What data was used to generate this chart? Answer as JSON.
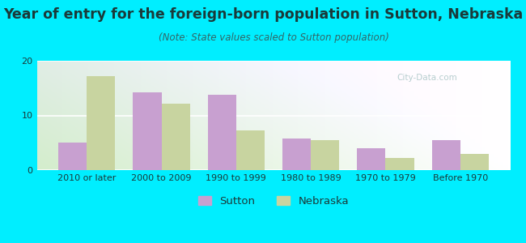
{
  "categories": [
    "2010 or later",
    "2000 to 2009",
    "1990 to 1999",
    "1980 to 1989",
    "1970 to 1979",
    "Before 1970"
  ],
  "sutton_values": [
    5.0,
    14.2,
    13.8,
    5.8,
    4.0,
    5.5
  ],
  "nebraska_values": [
    17.2,
    12.2,
    7.2,
    5.5,
    2.2,
    3.0
  ],
  "sutton_color": "#c8a0d0",
  "nebraska_color": "#c8d4a0",
  "title": "Year of entry for the foreign-born population in Sutton, Nebraska",
  "subtitle": "(Note: State values scaled to Sutton population)",
  "legend_sutton": "Sutton",
  "legend_nebraska": "Nebraska",
  "ylim": [
    0,
    20
  ],
  "yticks": [
    0,
    10,
    20
  ],
  "background_outer": "#00eeff",
  "background_inner_bottom_left": "#d4edcc",
  "background_inner_top_right": "#f8fffc",
  "bar_width": 0.38,
  "title_fontsize": 12.5,
  "subtitle_fontsize": 8.5,
  "tick_fontsize": 8.0,
  "legend_fontsize": 9.5,
  "title_color": "#1a3a3a",
  "subtitle_color": "#336666",
  "tick_color": "#1a3a3a"
}
